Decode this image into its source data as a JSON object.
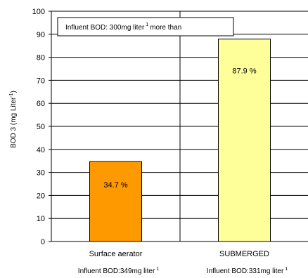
{
  "chart_data": {
    "type": "bar",
    "ylabel": "BOD 3 (mg Liter",
    "ylabel_sup": "-1",
    "ylabel_close": ")",
    "ylim": [
      0,
      100
    ],
    "yticks": [
      0,
      10,
      20,
      30,
      40,
      50,
      60,
      70,
      80,
      90,
      100
    ],
    "grid": true,
    "categories": [
      "Surface aerator",
      "SUBMERGED"
    ],
    "sub_labels": [
      {
        "text": "Influent BOD:349mg liter",
        "sup": "1"
      },
      {
        "text": "Influent BOD:331mg liter",
        "sup": "1"
      }
    ],
    "values": [
      34.7,
      87.9
    ],
    "value_labels": [
      "34.7 %",
      "87.9 %"
    ],
    "colors": [
      "#FF9900",
      "#FFFF99"
    ],
    "annotation": {
      "text": "Influent BOD:  300mg liter",
      "sup": "1",
      "suffix": "more than"
    }
  }
}
